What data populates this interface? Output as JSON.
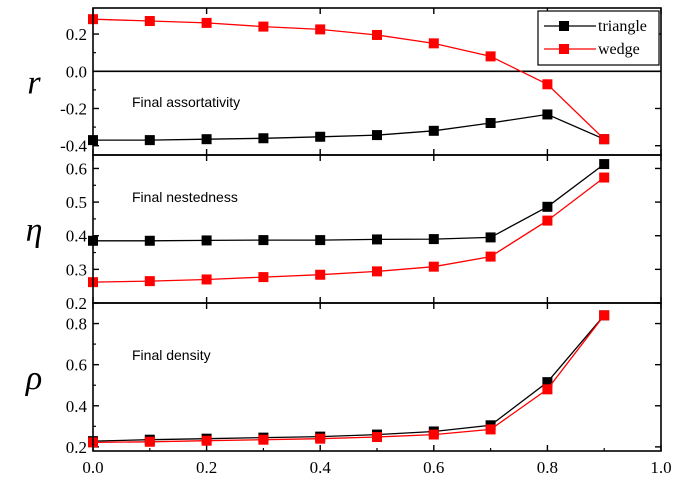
{
  "chart_data": [
    {
      "type": "line",
      "ylabel": "r",
      "annotation": "Final assortativity",
      "ylim": [
        -0.45,
        0.34
      ],
      "yticks": [
        -0.4,
        -0.2,
        0.0,
        0.2
      ],
      "ytick_labels": [
        "-0.4",
        "-0.2",
        "0.0",
        "0.2"
      ],
      "zero_line": true,
      "x": [
        0.0,
        0.1,
        0.2,
        0.3,
        0.4,
        0.5,
        0.6,
        0.7,
        0.8,
        0.9
      ],
      "series": [
        {
          "name": "triangle",
          "color": "#000000",
          "values": [
            -0.37,
            -0.37,
            -0.365,
            -0.36,
            -0.352,
            -0.343,
            -0.32,
            -0.278,
            -0.232,
            -0.365
          ]
        },
        {
          "name": "wedge",
          "color": "#ff0000",
          "values": [
            0.28,
            0.27,
            0.26,
            0.24,
            0.225,
            0.195,
            0.15,
            0.08,
            -0.07,
            -0.365
          ]
        }
      ]
    },
    {
      "type": "line",
      "ylabel": "η",
      "annotation": "Final nestedness",
      "ylim": [
        0.2,
        0.64
      ],
      "yticks": [
        0.2,
        0.3,
        0.4,
        0.5,
        0.6
      ],
      "ytick_labels": [
        "0.2",
        "0.3",
        "0.4",
        "0.5",
        "0.6"
      ],
      "x": [
        0.0,
        0.1,
        0.2,
        0.3,
        0.4,
        0.5,
        0.6,
        0.7,
        0.8,
        0.9
      ],
      "series": [
        {
          "name": "triangle",
          "color": "#000000",
          "values": [
            0.385,
            0.385,
            0.386,
            0.387,
            0.387,
            0.389,
            0.39,
            0.395,
            0.486,
            0.613
          ]
        },
        {
          "name": "wedge",
          "color": "#ff0000",
          "values": [
            0.262,
            0.265,
            0.27,
            0.277,
            0.284,
            0.294,
            0.308,
            0.338,
            0.445,
            0.573
          ]
        }
      ]
    },
    {
      "type": "line",
      "ylabel": "ρ",
      "annotation": "Final density",
      "ylim": [
        0.18,
        0.9
      ],
      "yticks": [
        0.2,
        0.4,
        0.6,
        0.8
      ],
      "ytick_labels": [
        "0.2",
        "0.4",
        "0.6",
        "0.8"
      ],
      "x": [
        0.0,
        0.1,
        0.2,
        0.3,
        0.4,
        0.5,
        0.6,
        0.7,
        0.8,
        0.9
      ],
      "series": [
        {
          "name": "triangle",
          "color": "#000000",
          "values": [
            0.228,
            0.235,
            0.24,
            0.245,
            0.25,
            0.26,
            0.275,
            0.305,
            0.515,
            0.84
          ]
        },
        {
          "name": "wedge",
          "color": "#ff0000",
          "values": [
            0.222,
            0.225,
            0.23,
            0.235,
            0.24,
            0.248,
            0.26,
            0.285,
            0.48,
            0.84
          ]
        }
      ]
    }
  ],
  "x_axis": {
    "xlim": [
      0.0,
      1.0
    ],
    "xticks": [
      0.0,
      0.2,
      0.4,
      0.6,
      0.8,
      1.0
    ],
    "xtick_labels": [
      "0.0",
      "0.2",
      "0.4",
      "0.6",
      "0.8",
      "1.0"
    ]
  },
  "legend": {
    "placement": "top-right",
    "entries": [
      {
        "name": "triangle",
        "color": "#000000"
      },
      {
        "name": "wedge",
        "color": "#ff0000"
      }
    ]
  }
}
